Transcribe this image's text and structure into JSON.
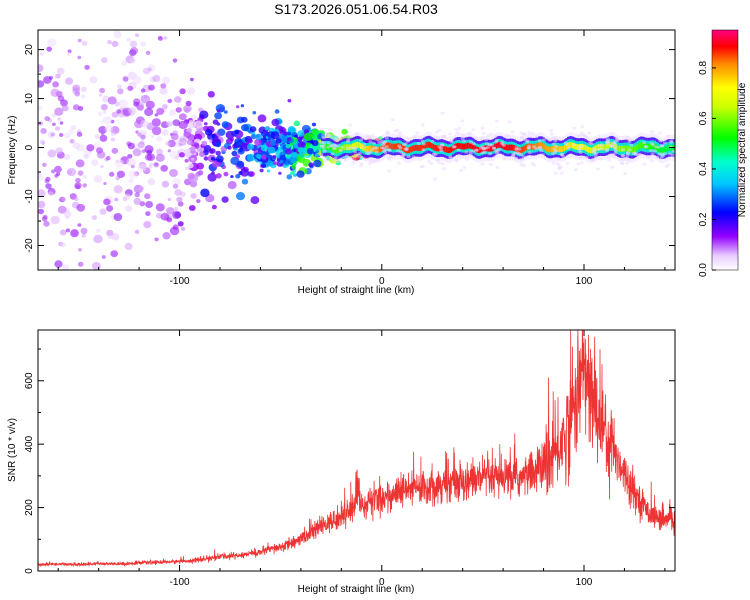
{
  "figure": {
    "title": "S173.2026.051.06.54.R03"
  },
  "chart_data": [
    {
      "type": "heatmap",
      "title": "",
      "xlabel": "Height of straight line (km)",
      "ylabel": "Frequency (Hz)",
      "xlim": [
        -170,
        145
      ],
      "ylim": [
        -25,
        24
      ],
      "xticks": [
        -100,
        0,
        100
      ],
      "yticks": [
        -20,
        -10,
        0,
        10,
        20
      ],
      "colorbar": {
        "label": "Normalized spectral amplitude",
        "range": [
          0,
          0.95
        ],
        "ticks": [
          0.0,
          0.2,
          0.4,
          0.6,
          0.8
        ],
        "colormap": "rainbow (white-violet-blue-cyan-green-yellow-red-magenta)",
        "colors": [
          "#f2e6ff",
          "#8800ff",
          "#0000ff",
          "#00ffff",
          "#00ff00",
          "#ffff00",
          "#ff0000",
          "#ff0080"
        ]
      },
      "description_points": [
        {
          "x": -160,
          "freq_spread_hz": 25,
          "amplitude": 0.02
        },
        {
          "x": -120,
          "freq_spread_hz": 22,
          "amplitude": 0.03
        },
        {
          "x": -80,
          "freq_spread_hz": 7,
          "amplitude": 0.2
        },
        {
          "x": -50,
          "freq_spread_hz": 5,
          "amplitude": 0.3
        },
        {
          "x": -20,
          "freq_spread_hz": 2,
          "amplitude": 0.6
        },
        {
          "x": 0,
          "freq_spread_hz": 1.5,
          "amplitude": 0.85
        },
        {
          "x": 60,
          "freq_spread_hz": 1.5,
          "amplitude": 0.9
        },
        {
          "x": 100,
          "freq_spread_hz": 1.5,
          "amplitude": 0.7
        },
        {
          "x": 140,
          "freq_spread_hz": 1.5,
          "amplitude": 0.5
        }
      ]
    },
    {
      "type": "line",
      "title": "",
      "xlabel": "Height of straight line (km)",
      "ylabel": "SNR (10 * v/v)",
      "xlim": [
        -170,
        145
      ],
      "ylim": [
        0,
        760
      ],
      "xticks": [
        -100,
        0,
        100
      ],
      "yticks": [
        0,
        200,
        400,
        600
      ],
      "line_color": "#ee3333",
      "series": [
        {
          "x": [
            -170,
            -160,
            -150,
            -140,
            -130,
            -120,
            -110,
            -100,
            -90,
            -80,
            -70,
            -60,
            -50,
            -40,
            -30,
            -20,
            -15,
            -10,
            0,
            10,
            20,
            30,
            40,
            50,
            60,
            70,
            80,
            85,
            90,
            95,
            98,
            100,
            103,
            105,
            110,
            115,
            120,
            125,
            130,
            135,
            140,
            145
          ],
          "values": [
            20,
            22,
            20,
            23,
            22,
            25,
            28,
            30,
            35,
            45,
            50,
            60,
            75,
            100,
            140,
            170,
            200,
            210,
            230,
            250,
            265,
            275,
            285,
            290,
            290,
            295,
            330,
            360,
            420,
            520,
            600,
            640,
            560,
            520,
            450,
            380,
            310,
            250,
            200,
            170,
            160,
            160
          ]
        }
      ]
    }
  ]
}
